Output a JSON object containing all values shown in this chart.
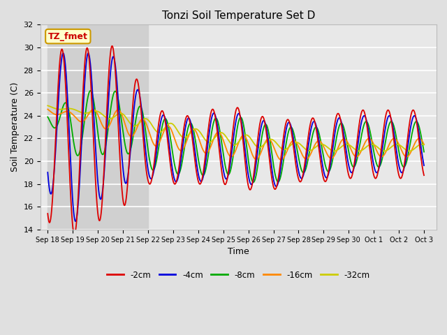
{
  "title": "Tonzi Soil Temperature Set D",
  "xlabel": "Time",
  "ylabel": "Soil Temperature (C)",
  "ylim": [
    14,
    32
  ],
  "yticks": [
    14,
    16,
    18,
    20,
    22,
    24,
    26,
    28,
    30,
    32
  ],
  "figure_bg": "#e0e0e0",
  "plot_bg": "#e8e8e8",
  "grid_color": "#ffffff",
  "shaded_region": [
    0,
    4
  ],
  "shaded_color": "#d0d0d0",
  "legend_label": "TZ_fmet",
  "legend_bg": "#ffffcc",
  "legend_border": "#cc9900",
  "legend_text_color": "#cc0000",
  "line_colors": {
    "-2cm": "#dd0000",
    "-4cm": "#0000dd",
    "-8cm": "#00aa00",
    "-16cm": "#ff8800",
    "-32cm": "#cccc00"
  },
  "x_labels": [
    "Sep 18",
    "Sep 19",
    "Sep 20",
    "Sep 21",
    "Sep 22",
    "Sep 23",
    "Sep 24",
    "Sep 25",
    "Sep 26",
    "Sep 27",
    "Sep 28",
    "Sep 29",
    "Sep 30",
    "Oct 1",
    "Oct 2",
    "Oct 3"
  ]
}
